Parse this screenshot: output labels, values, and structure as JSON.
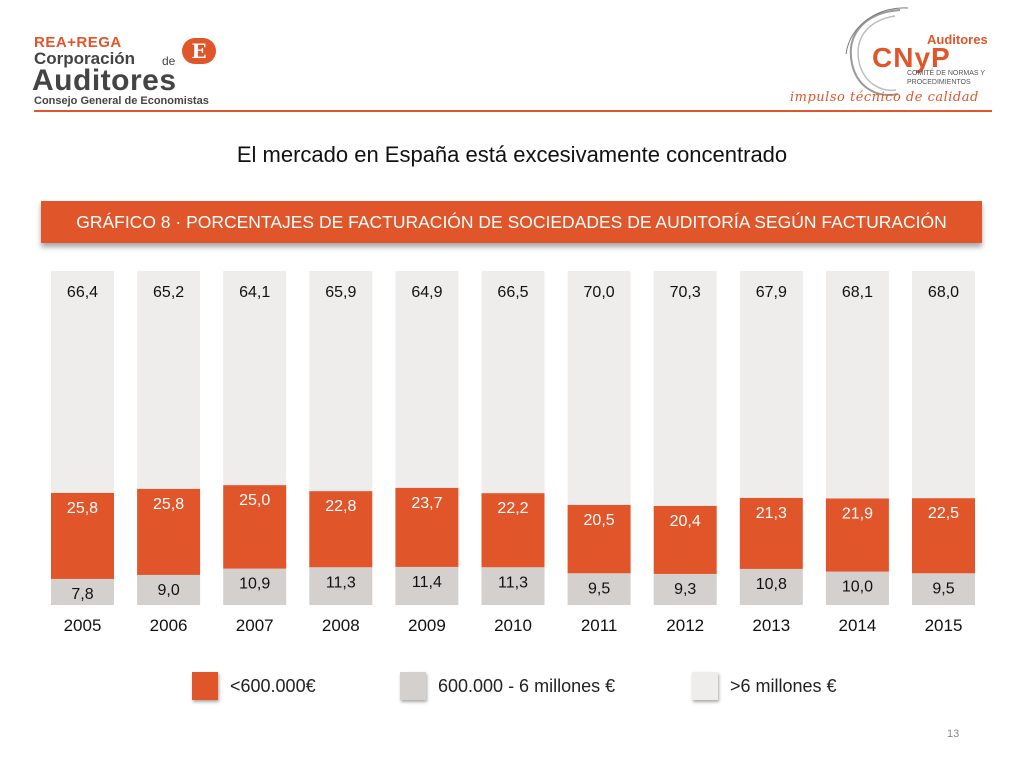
{
  "header": {
    "left_logo": {
      "line1": "REA+REGA",
      "line2": "Corporación",
      "line2_small": "de",
      "badge": "E",
      "line3": "Auditores",
      "line4": "Consejo General de Economistas"
    },
    "right_logo": {
      "word": "Auditores",
      "acronym": "CNyP",
      "committee": "COMITÉ DE NORMAS Y PROCEDIMIENTOS",
      "tagline": "impulso técnico de calidad"
    },
    "accent_color": "#e0562a"
  },
  "slide_title": "El mercado en España está excesivamente concentrado",
  "banner_title": "GRÁFICO 8 · PORCENTAJES DE FACTURACIÓN DE SOCIEDADES DE AUDITORÍA SEGÚN FACTURACIÓN",
  "chart_data": {
    "type": "bar",
    "stacked": true,
    "categories": [
      "2005",
      "2006",
      "2007",
      "2008",
      "2009",
      "2010",
      "2011",
      "2012",
      "2013",
      "2014",
      "2015"
    ],
    "series": [
      {
        "name": "<600.000€",
        "color": "#e0562a",
        "values": [
          25.8,
          25.8,
          25.0,
          22.8,
          23.7,
          22.2,
          20.5,
          20.4,
          21.3,
          21.9,
          22.5
        ],
        "labels": [
          "25,8",
          "25,8",
          "25,0",
          "22,8",
          "23,7",
          "22,2",
          "20,5",
          "20,4",
          "21,3",
          "21,9",
          "22,5"
        ]
      },
      {
        "name": "600.000 - 6 millones €",
        "color": "#d3d0cd",
        "values": [
          7.8,
          9.0,
          10.9,
          11.3,
          11.4,
          11.3,
          9.5,
          9.3,
          10.8,
          10.0,
          9.5
        ],
        "labels": [
          "7,8",
          "9,0",
          "10,9",
          "11,3",
          "11,4",
          "11,3",
          "9,5",
          "9,3",
          "10,8",
          "10,0",
          "9,5"
        ]
      },
      {
        "name": ">6 millones €",
        "color": "#eeedec",
        "values": [
          66.4,
          65.2,
          64.1,
          65.9,
          64.9,
          66.5,
          70.0,
          70.3,
          67.9,
          68.1,
          68.0
        ],
        "labels": [
          "66,4",
          "65,2",
          "64,1",
          "65,9",
          "64,9",
          "66,5",
          "70,0",
          "70,3",
          "67,9",
          "68,1",
          "68,0"
        ]
      }
    ],
    "legend_position": "bottom"
  },
  "legend": [
    {
      "label": "<600.000€",
      "color": "#e0562a"
    },
    {
      "label": "600.000 - 6 millones €",
      "color": "#d3d0cd"
    },
    {
      "label": ">6 millones €",
      "color": "#eeedec"
    }
  ],
  "page_number": "13"
}
